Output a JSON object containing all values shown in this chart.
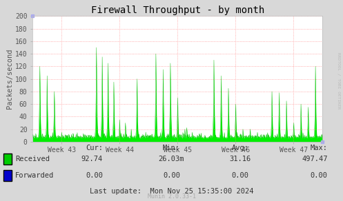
{
  "title": "Firewall Throughput - by month",
  "ylabel": "Packets/second",
  "bg_color": "#d8d8d8",
  "plot_bg_color": "#ffffff",
  "grid_color": "#ff8888",
  "ylim": [
    0,
    200
  ],
  "yticks": [
    0,
    20,
    40,
    60,
    80,
    100,
    120,
    140,
    160,
    180,
    200
  ],
  "xtick_labels": [
    "Week 43",
    "Week 44",
    "Week 45",
    "Week 46",
    "Week 47"
  ],
  "fill_color": "#00ee00",
  "fill_edge_color": "#00bb00",
  "title_color": "#000000",
  "legend_received_color": "#00cc00",
  "legend_forwarded_color": "#0000cc",
  "last_update_text": "Last update:  Mon Nov 25 15:35:00 2024",
  "munin_text": "Munin 2.0.33-1",
  "rrdtool_text": "RRDTOOL / TOBI OETIKER",
  "cur_label": "Cur:",
  "min_label": "Min:",
  "avg_label": "Avg:",
  "max_label": "Max:",
  "received_cur": "92.74",
  "received_min": "26.03m",
  "received_avg": "31.16",
  "received_max": "497.47",
  "forwarded_cur": "0.00",
  "forwarded_min": "0.00",
  "forwarded_avg": "0.00",
  "forwarded_max": "0.00",
  "week43_peaks": [
    120,
    105,
    80,
    15,
    12,
    12,
    13
  ],
  "week44_peaks": [
    150,
    135,
    125,
    95,
    35,
    30,
    20,
    100,
    12
  ],
  "week45_peaks": [
    140,
    115,
    125,
    70,
    20,
    15,
    13
  ],
  "week46_peaks": [
    130,
    105,
    85,
    60,
    20,
    20,
    15
  ],
  "week47_peaks": [
    80,
    78,
    65,
    30,
    60,
    55,
    120
  ]
}
